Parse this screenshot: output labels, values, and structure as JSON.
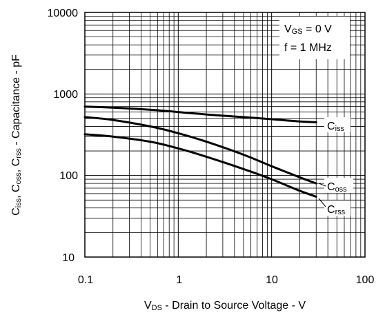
{
  "chart_data": {
    "type": "line",
    "x_scale": "log",
    "y_scale": "log",
    "xlim": [
      0.1,
      100
    ],
    "ylim": [
      10,
      10000
    ],
    "x_ticks": [
      "0.1",
      "1",
      "10",
      "100"
    ],
    "y_ticks": [
      "10",
      "100",
      "1000",
      "10000"
    ],
    "grid": true,
    "xlabel": {
      "pre": "V",
      "sub": "DS",
      "post": " - Drain to Source Voltage - V"
    },
    "ylabel": {
      "p1": "C",
      "s1": "iss",
      "p2": ", C",
      "s2": "oss",
      "p3": ", C",
      "s3": "rss",
      "p4": " - Capacitance - pF"
    },
    "annotations": {
      "vgs": {
        "pre": "V",
        "sub": "GS",
        "post": " = 0 V"
      },
      "freq": "f = 1 MHz"
    },
    "series": [
      {
        "name": "Ciss",
        "label_main": "C",
        "label_sub": "iss",
        "x": [
          0.1,
          0.2,
          0.5,
          1,
          2,
          5,
          10,
          20,
          30
        ],
        "y": [
          700,
          680,
          640,
          600,
          560,
          520,
          490,
          460,
          450
        ]
      },
      {
        "name": "Coss",
        "label_main": "C",
        "label_sub": "oss",
        "x": [
          0.1,
          0.2,
          0.5,
          1,
          2,
          5,
          10,
          20,
          30
        ],
        "y": [
          520,
          480,
          400,
          330,
          260,
          180,
          130,
          95,
          80
        ]
      },
      {
        "name": "Crss",
        "label_main": "C",
        "label_sub": "rss",
        "x": [
          0.1,
          0.2,
          0.5,
          1,
          2,
          5,
          10,
          20,
          30
        ],
        "y": [
          320,
          300,
          260,
          215,
          170,
          120,
          90,
          65,
          55
        ]
      }
    ]
  }
}
